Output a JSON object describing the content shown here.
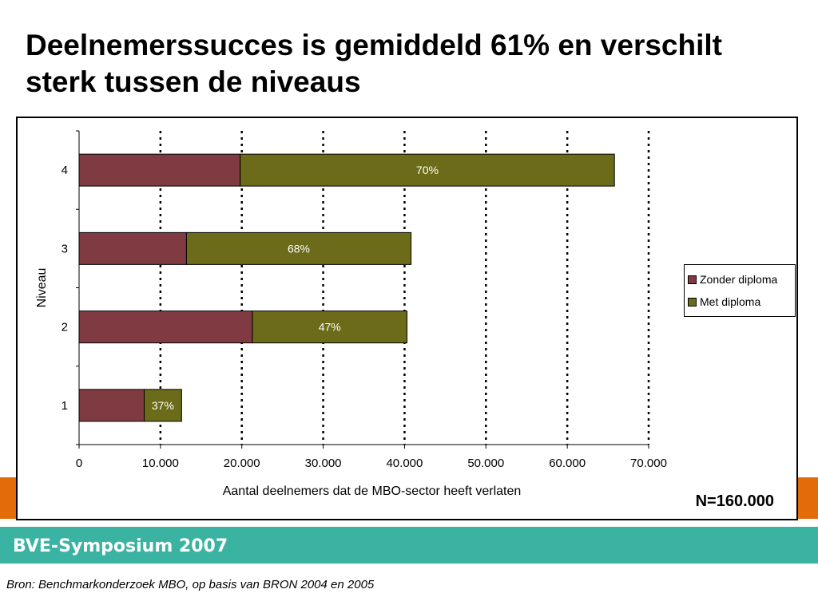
{
  "slide": {
    "title": "Deelnemerssucces is gemiddeld 61% en verschilt sterk tussen de niveaus",
    "footer_logo": "BVE-Symposium 2007",
    "source": "Bron: Benchmarkonderzoek MBO, op basis van BRON 2004 en 2005",
    "n_label": "N=160.000",
    "colors": {
      "orange_band": "#e36c0a",
      "teal_band": "#3bb3a3"
    }
  },
  "chart_data": {
    "type": "bar",
    "orientation": "horizontal",
    "stacked": true,
    "categories": [
      "1",
      "2",
      "3",
      "4"
    ],
    "series": [
      {
        "name": "Zonder diploma",
        "color": "#7f3b41",
        "values": [
          8000,
          21300,
          13200,
          19800
        ]
      },
      {
        "name": "Met diploma",
        "color": "#6b6b1a",
        "values": [
          4600,
          19000,
          27600,
          46000
        ]
      }
    ],
    "data_labels": [
      "37%",
      "47%",
      "68%",
      "70%"
    ],
    "xlabel": "Aantal deelnemers dat de MBO-sector heeft verlaten",
    "ylabel": "Niveau",
    "xlim": [
      0,
      70000
    ],
    "xticks": [
      0,
      10000,
      20000,
      30000,
      40000,
      50000,
      60000,
      70000
    ],
    "xtick_labels": [
      "0",
      "10.000",
      "20.000",
      "30.000",
      "40.000",
      "50.000",
      "60.000",
      "70.000"
    ],
    "grid": "vertical dotted",
    "legend_position": "right"
  }
}
